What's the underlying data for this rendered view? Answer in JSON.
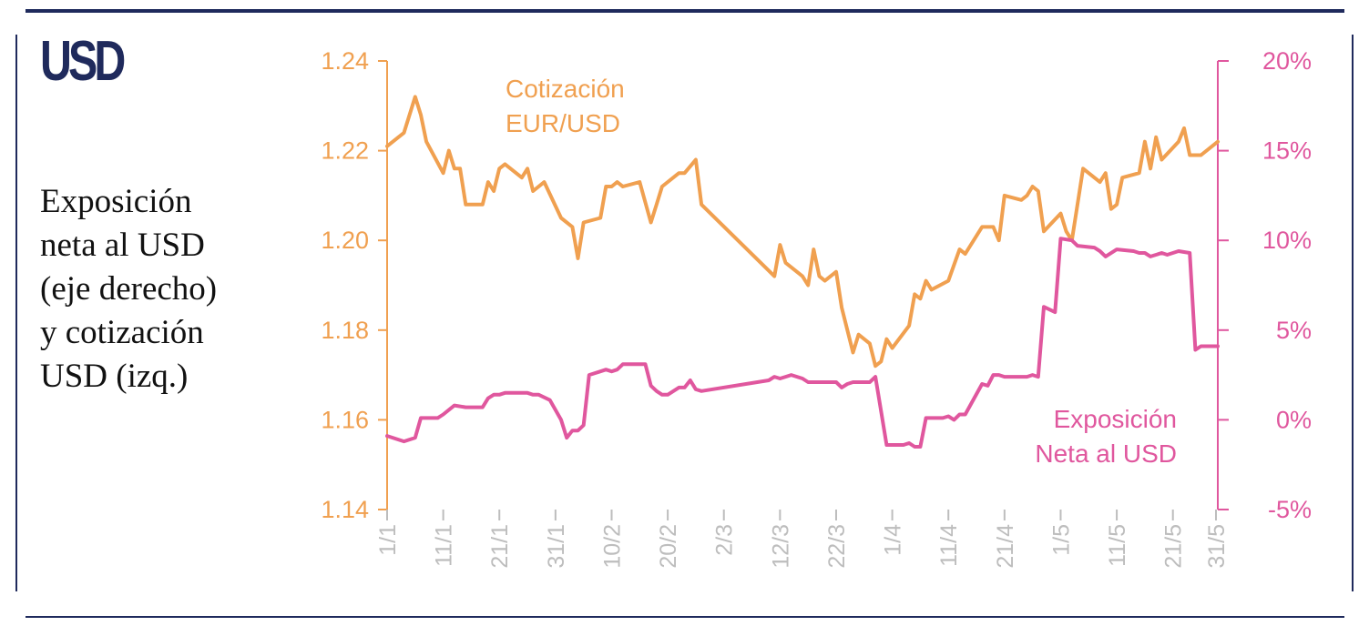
{
  "header": {
    "currency": "USD"
  },
  "side_title": "Exposición\nneta al USD\n(eje derecho)\ny cotización\nUSD (izq.)",
  "chart_data": {
    "type": "line",
    "x_ticks": [
      "1/1",
      "11/1",
      "21/1",
      "31/1",
      "10/2",
      "20/2",
      "2/3",
      "12/3",
      "22/3",
      "1/4",
      "11/4",
      "21/4",
      "1/5",
      "11/5",
      "21/5",
      "31/5"
    ],
    "left_axis": {
      "ticks": [
        "1.24",
        "1.22",
        "1.20",
        "1.18",
        "1.16",
        "1.14"
      ],
      "ylim": [
        1.14,
        1.24
      ]
    },
    "right_axis": {
      "ticks": [
        "20%",
        "15%",
        "10%",
        "5%",
        "0%",
        "-5%"
      ],
      "ylim": [
        -5,
        20
      ]
    },
    "series": [
      {
        "name_lines": [
          "Cotización",
          "EUR/USD"
        ],
        "axis": "left",
        "color": "#f0a050",
        "points": [
          [
            0,
            1.221
          ],
          [
            3,
            1.224
          ],
          [
            5,
            1.232
          ],
          [
            6,
            1.228
          ],
          [
            7,
            1.222
          ],
          [
            10,
            1.215
          ],
          [
            11,
            1.22
          ],
          [
            12,
            1.216
          ],
          [
            13,
            1.216
          ],
          [
            14,
            1.208
          ],
          [
            17,
            1.208
          ],
          [
            18,
            1.213
          ],
          [
            19,
            1.211
          ],
          [
            20,
            1.216
          ],
          [
            21,
            1.217
          ],
          [
            24,
            1.214
          ],
          [
            25,
            1.216
          ],
          [
            26,
            1.211
          ],
          [
            28,
            1.213
          ],
          [
            31,
            1.205
          ],
          [
            33,
            1.203
          ],
          [
            34,
            1.196
          ],
          [
            35,
            1.204
          ],
          [
            38,
            1.205
          ],
          [
            39,
            1.212
          ],
          [
            40,
            1.212
          ],
          [
            41,
            1.213
          ],
          [
            42,
            1.212
          ],
          [
            45,
            1.213
          ],
          [
            47,
            1.204
          ],
          [
            48,
            1.208
          ],
          [
            49,
            1.212
          ],
          [
            52,
            1.215
          ],
          [
            53,
            1.215
          ],
          [
            55,
            1.218
          ],
          [
            56,
            1.208
          ],
          [
            69,
            1.192
          ],
          [
            70,
            1.199
          ],
          [
            71,
            1.195
          ],
          [
            74,
            1.192
          ],
          [
            75,
            1.19
          ],
          [
            76,
            1.198
          ],
          [
            77,
            1.192
          ],
          [
            78,
            1.191
          ],
          [
            80,
            1.193
          ],
          [
            81,
            1.185
          ],
          [
            83,
            1.175
          ],
          [
            84,
            1.179
          ],
          [
            86,
            1.177
          ],
          [
            87,
            1.172
          ],
          [
            88,
            1.173
          ],
          [
            89,
            1.178
          ],
          [
            90,
            1.176
          ],
          [
            93,
            1.181
          ],
          [
            94,
            1.188
          ],
          [
            95,
            1.187
          ],
          [
            96,
            1.191
          ],
          [
            97,
            1.189
          ],
          [
            100,
            1.191
          ],
          [
            102,
            1.198
          ],
          [
            103,
            1.197
          ],
          [
            106,
            1.203
          ],
          [
            108,
            1.203
          ],
          [
            109,
            1.2
          ],
          [
            110,
            1.21
          ],
          [
            113,
            1.209
          ],
          [
            114,
            1.21
          ],
          [
            115,
            1.212
          ],
          [
            116,
            1.211
          ],
          [
            117,
            1.202
          ],
          [
            120,
            1.206
          ],
          [
            121,
            1.202
          ],
          [
            122,
            1.2
          ],
          [
            124,
            1.216
          ],
          [
            127,
            1.213
          ],
          [
            128,
            1.215
          ],
          [
            129,
            1.207
          ],
          [
            130,
            1.208
          ],
          [
            131,
            1.214
          ],
          [
            134,
            1.215
          ],
          [
            135,
            1.222
          ],
          [
            136,
            1.216
          ],
          [
            137,
            1.223
          ],
          [
            138,
            1.218
          ],
          [
            141,
            1.222
          ],
          [
            142,
            1.225
          ],
          [
            143,
            1.219
          ],
          [
            144,
            1.219
          ],
          [
            145,
            1.219
          ],
          [
            148,
            1.222
          ]
        ]
      },
      {
        "name_lines": [
          "Exposición",
          "Neta al USD"
        ],
        "axis": "right",
        "color": "#e0579e",
        "points": [
          [
            0,
            -0.9
          ],
          [
            2,
            -1.1
          ],
          [
            3,
            -1.2
          ],
          [
            5,
            -1.0
          ],
          [
            6,
            0.1
          ],
          [
            9,
            0.1
          ],
          [
            10,
            0.3
          ],
          [
            12,
            0.8
          ],
          [
            14,
            0.7
          ],
          [
            15,
            0.7
          ],
          [
            17,
            0.7
          ],
          [
            18,
            1.2
          ],
          [
            19,
            1.4
          ],
          [
            20,
            1.4
          ],
          [
            21,
            1.5
          ],
          [
            24,
            1.5
          ],
          [
            25,
            1.5
          ],
          [
            26,
            1.4
          ],
          [
            27,
            1.4
          ],
          [
            29,
            1.1
          ],
          [
            31,
            0.0
          ],
          [
            32,
            -1.0
          ],
          [
            33,
            -0.6
          ],
          [
            34,
            -0.6
          ],
          [
            35,
            -0.3
          ],
          [
            36,
            2.5
          ],
          [
            38,
            2.7
          ],
          [
            39,
            2.8
          ],
          [
            40,
            2.7
          ],
          [
            41,
            2.8
          ],
          [
            42,
            3.1
          ],
          [
            43,
            3.1
          ],
          [
            46,
            3.1
          ],
          [
            47,
            1.9
          ],
          [
            48,
            1.6
          ],
          [
            49,
            1.4
          ],
          [
            50,
            1.4
          ],
          [
            52,
            1.8
          ],
          [
            53,
            1.8
          ],
          [
            54,
            2.2
          ],
          [
            55,
            1.7
          ],
          [
            56,
            1.6
          ],
          [
            68,
            2.2
          ],
          [
            69,
            2.4
          ],
          [
            70,
            2.3
          ],
          [
            71,
            2.4
          ],
          [
            72,
            2.5
          ],
          [
            74,
            2.3
          ],
          [
            75,
            2.1
          ],
          [
            76,
            2.1
          ],
          [
            80,
            2.1
          ],
          [
            81,
            1.8
          ],
          [
            82,
            2.0
          ],
          [
            83,
            2.1
          ],
          [
            84,
            2.1
          ],
          [
            86,
            2.1
          ],
          [
            87,
            2.4
          ],
          [
            89,
            -1.4
          ],
          [
            92,
            -1.4
          ],
          [
            93,
            -1.3
          ],
          [
            94,
            -1.5
          ],
          [
            95,
            -1.5
          ],
          [
            96,
            0.1
          ],
          [
            99,
            0.1
          ],
          [
            100,
            0.2
          ],
          [
            101,
            0.0
          ],
          [
            102,
            0.3
          ],
          [
            103,
            0.3
          ],
          [
            106,
            2.0
          ],
          [
            107,
            1.9
          ],
          [
            108,
            2.5
          ],
          [
            109,
            2.5
          ],
          [
            110,
            2.4
          ],
          [
            114,
            2.4
          ],
          [
            115,
            2.5
          ],
          [
            116,
            2.4
          ],
          [
            117,
            6.3
          ],
          [
            119,
            6.0
          ],
          [
            120,
            10.1
          ],
          [
            122,
            10.0
          ],
          [
            123,
            9.7
          ],
          [
            126,
            9.6
          ],
          [
            127,
            9.4
          ],
          [
            128,
            9.1
          ],
          [
            130,
            9.5
          ],
          [
            133,
            9.4
          ],
          [
            134,
            9.3
          ],
          [
            135,
            9.3
          ],
          [
            136,
            9.1
          ],
          [
            137,
            9.2
          ],
          [
            138,
            9.3
          ],
          [
            139,
            9.2
          ],
          [
            141,
            9.4
          ],
          [
            143,
            9.3
          ],
          [
            144,
            3.9
          ],
          [
            145,
            4.1
          ],
          [
            148,
            4.1
          ]
        ]
      }
    ],
    "grid": false,
    "legend": "inline labels"
  }
}
